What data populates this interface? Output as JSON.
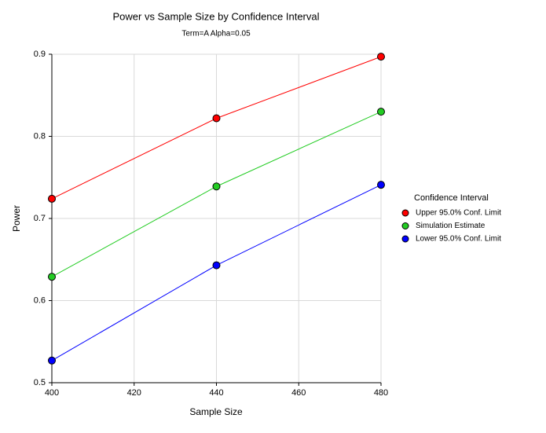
{
  "chart_data": {
    "type": "line",
    "title": "Power vs Sample Size by Confidence Interval",
    "subtitle": "Term=A Alpha=0.05",
    "x_label": "Sample Size",
    "y_label": "Power",
    "legend_title": "Confidence Interval",
    "legend_position": "right",
    "grid": true,
    "x": [
      400,
      440,
      480
    ],
    "xlim": [
      400,
      480
    ],
    "xticks": [
      400,
      420,
      440,
      460,
      480
    ],
    "ylim": [
      0.5,
      0.9
    ],
    "yticks": [
      0.5,
      0.6,
      0.7,
      0.8,
      0.9
    ],
    "series": [
      {
        "name": "Upper 95.0% Conf. Limit",
        "color": "#ff0000",
        "values": [
          0.724,
          0.822,
          0.897
        ]
      },
      {
        "name": "Simulation Estimate",
        "color": "#22cc22",
        "values": [
          0.629,
          0.739,
          0.83
        ]
      },
      {
        "name": "Lower 95.0% Conf. Limit",
        "color": "#0000ff",
        "values": [
          0.527,
          0.643,
          0.741
        ]
      }
    ]
  }
}
